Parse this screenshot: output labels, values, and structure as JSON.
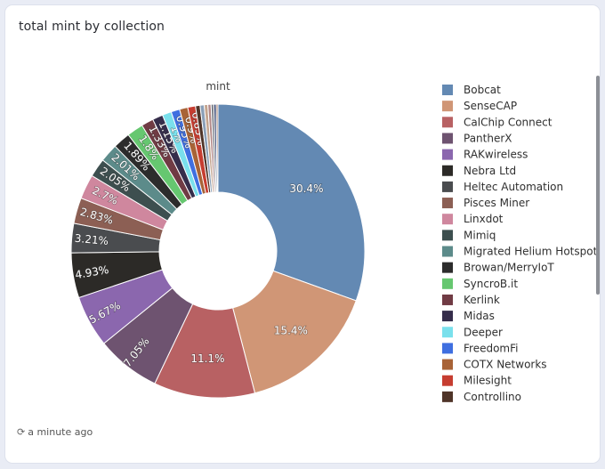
{
  "card": {
    "title": "total mint by collection"
  },
  "footer": {
    "refresh_icon": "refresh-icon",
    "timestamp": "a minute ago"
  },
  "chart_data": {
    "type": "pie",
    "donut": true,
    "title": "mint",
    "legend_position": "right",
    "slices": [
      {
        "name": "Bobcat",
        "value": 30.4,
        "color": "#6389b3"
      },
      {
        "name": "SenseCAP",
        "value": 15.4,
        "color": "#d09676"
      },
      {
        "name": "CalChip Connect",
        "value": 11.1,
        "color": "#b86163"
      },
      {
        "name": "PantherX",
        "value": 7.05,
        "color": "#6e5370"
      },
      {
        "name": "RAKwireless",
        "value": 5.67,
        "color": "#8b67ae"
      },
      {
        "name": "Nebra Ltd",
        "value": 4.93,
        "color": "#2c2a27"
      },
      {
        "name": "Heltec Automation",
        "value": 3.21,
        "color": "#4a4c4f"
      },
      {
        "name": "Pisces Miner",
        "value": 2.83,
        "color": "#8c5f54"
      },
      {
        "name": "Linxdot",
        "value": 2.7,
        "color": "#cf879e"
      },
      {
        "name": "Mimiq",
        "value": 2.05,
        "color": "#3d4f4f"
      },
      {
        "name": "Migrated Helium Hotspot",
        "value": 2.01,
        "color": "#5c8b8a"
      },
      {
        "name": "Browan/MerryIoT",
        "value": 1.89,
        "color": "#2c2c2c"
      },
      {
        "name": "SyncroB.it",
        "value": 1.8,
        "color": "#66c770"
      },
      {
        "name": "Kerlink",
        "value": 1.33,
        "color": "#703b44"
      },
      {
        "name": "Midas",
        "value": 1.15,
        "color": "#352d4b"
      },
      {
        "name": "Deeper",
        "value": 1.0,
        "color": "#7ae0ec"
      },
      {
        "name": "FreedomFi",
        "value": 0.95,
        "color": "#3f6fe0"
      },
      {
        "name": "COTX Networks",
        "value": 0.9,
        "color": "#a86337"
      },
      {
        "name": "Milesight",
        "value": 0.85,
        "color": "#c63d30"
      },
      {
        "name": "Controllino",
        "value": 0.5,
        "color": "#4f3428"
      },
      {
        "name": "",
        "value": 0.45,
        "color": "#8a9fb7"
      },
      {
        "name": "",
        "value": 0.4,
        "color": "#c4a58f"
      },
      {
        "name": "",
        "value": 0.35,
        "color": "#b38a8a"
      },
      {
        "name": "",
        "value": 0.3,
        "color": "#7b7f88"
      },
      {
        "name": "",
        "value": 0.25,
        "color": "#2a3b6b"
      },
      {
        "name": "",
        "value": 0.2,
        "color": "#a58070"
      }
    ],
    "visible_labels": [
      "30.4%",
      "15.4%",
      "11.1%",
      "7.05%",
      "5.67%",
      "4.93%",
      "3.21%",
      "2.83%",
      "2.7%",
      "2.05%",
      "2.01%",
      "1.89%",
      "1.8%",
      "1.33%",
      "1.15%",
      "1%",
      "0.95%",
      "0.9%",
      "0.85%"
    ]
  }
}
